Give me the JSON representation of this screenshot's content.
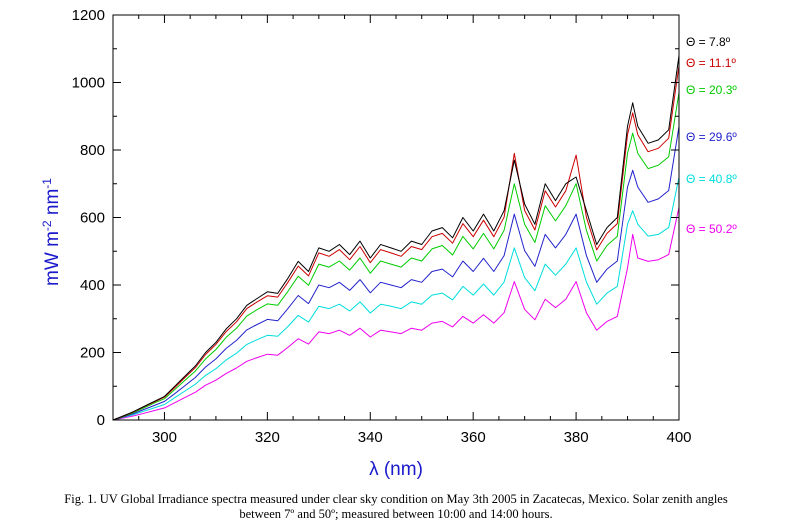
{
  "chart_data": {
    "type": "line",
    "xlabel": "λ (nm)",
    "ylabel": "mW m⁻² nm⁻¹",
    "xlim": [
      290,
      400
    ],
    "ylim": [
      0,
      1200
    ],
    "xticks": [
      "300",
      "320",
      "340",
      "360",
      "380",
      "400"
    ],
    "yticks": [
      "0",
      "200",
      "400",
      "600",
      "800",
      "1000",
      "1200"
    ],
    "grid": false,
    "legend_position": "right",
    "x": [
      290,
      292,
      294,
      296,
      298,
      300,
      302,
      304,
      306,
      308,
      310,
      312,
      314,
      316,
      318,
      320,
      322,
      324,
      326,
      328,
      330,
      332,
      334,
      336,
      338,
      340,
      342,
      344,
      346,
      348,
      350,
      352,
      354,
      356,
      358,
      360,
      362,
      364,
      366,
      368,
      370,
      372,
      374,
      376,
      378,
      380,
      382,
      384,
      386,
      388,
      390,
      391,
      392,
      394,
      396,
      398,
      400
    ],
    "series": [
      {
        "name": "Θ = 7.8º",
        "color": "#000000",
        "values": [
          0,
          12,
          25,
          40,
          55,
          70,
          100,
          130,
          160,
          200,
          230,
          270,
          300,
          340,
          360,
          380,
          375,
          420,
          470,
          440,
          510,
          500,
          520,
          490,
          530,
          480,
          520,
          510,
          500,
          530,
          520,
          560,
          570,
          540,
          600,
          560,
          610,
          560,
          620,
          770,
          640,
          580,
          700,
          650,
          700,
          720,
          620,
          520,
          570,
          600,
          870,
          940,
          870,
          820,
          830,
          860,
          1080
        ]
      },
      {
        "name": "Θ = 11.1º",
        "color": "#cc0000",
        "values": [
          0,
          11,
          24,
          39,
          53,
          68,
          96,
          126,
          155,
          194,
          224,
          262,
          291,
          330,
          350,
          368,
          364,
          408,
          456,
          427,
          495,
          485,
          505,
          475,
          514,
          466,
          505,
          495,
          485,
          514,
          505,
          543,
          553,
          524,
          582,
          543,
          592,
          543,
          601,
          790,
          621,
          563,
          679,
          631,
          679,
          785,
          601,
          504,
          553,
          582,
          845,
          910,
          845,
          795,
          805,
          835,
          1050
        ]
      },
      {
        "name": "Θ = 20.3º",
        "color": "#00cc00",
        "values": [
          0,
          10,
          22,
          36,
          50,
          63,
          90,
          118,
          145,
          181,
          209,
          245,
          272,
          308,
          327,
          344,
          340,
          381,
          426,
          399,
          462,
          453,
          471,
          444,
          480,
          435,
          471,
          462,
          453,
          480,
          471,
          507,
          517,
          489,
          544,
          507,
          553,
          507,
          562,
          700,
          580,
          526,
          635,
          590,
          635,
          700,
          562,
          471,
          517,
          544,
          790,
          850,
          790,
          745,
          755,
          780,
          970
        ]
      },
      {
        "name": "Θ = 29.6º",
        "color": "#2222cc",
        "values": [
          0,
          9,
          19,
          31,
          43,
          55,
          78,
          102,
          126,
          157,
          181,
          212,
          236,
          267,
          283,
          298,
          294,
          330,
          369,
          345,
          400,
          392,
          408,
          384,
          416,
          377,
          408,
          400,
          392,
          416,
          408,
          440,
          447,
          424,
          471,
          440,
          479,
          440,
          487,
          610,
          502,
          455,
          550,
          510,
          550,
          610,
          487,
          408,
          447,
          471,
          690,
          740,
          690,
          645,
          655,
          680,
          870
        ]
      },
      {
        "name": "Θ = 40.8º",
        "color": "#00dddd",
        "values": [
          0,
          8,
          16,
          26,
          36,
          46,
          66,
          86,
          106,
          132,
          152,
          178,
          198,
          224,
          238,
          251,
          248,
          277,
          310,
          290,
          337,
          330,
          343,
          323,
          350,
          317,
          343,
          337,
          330,
          350,
          343,
          370,
          376,
          356,
          396,
          370,
          403,
          370,
          409,
          510,
          422,
          383,
          462,
          429,
          462,
          510,
          409,
          343,
          376,
          396,
          580,
          620,
          580,
          545,
          550,
          570,
          720
        ]
      },
      {
        "name": "Θ = 50.2º",
        "color": "#ee00ee",
        "values": [
          0,
          6,
          12,
          20,
          28,
          36,
          51,
          67,
          82,
          103,
          118,
          138,
          154,
          174,
          185,
          195,
          192,
          215,
          241,
          225,
          261,
          256,
          266,
          251,
          272,
          246,
          266,
          261,
          256,
          272,
          266,
          287,
          292,
          276,
          307,
          287,
          312,
          287,
          318,
          410,
          328,
          297,
          358,
          333,
          358,
          410,
          318,
          266,
          292,
          307,
          450,
          550,
          480,
          470,
          475,
          490,
          630
        ]
      }
    ]
  },
  "caption": {
    "line1": "Fig. 1. UV Global Irradiance spectra measured under clear sky condition on May 3th 2005 in Zacatecas, Mexico. Solar zenith angles",
    "line2": "between 7º and 50º; measured between 10:00 and 14:00 hours."
  }
}
